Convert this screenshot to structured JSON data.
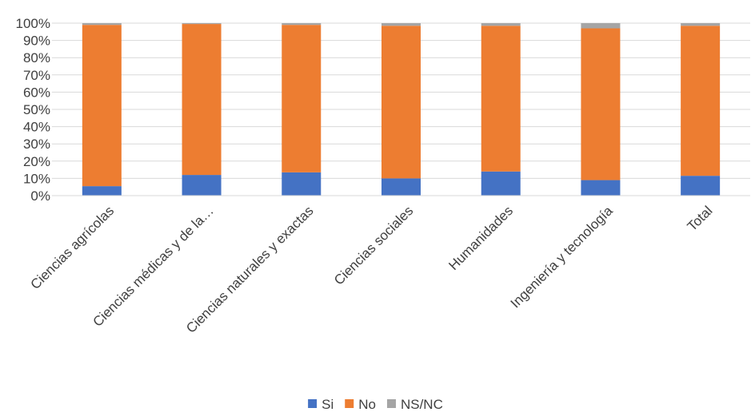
{
  "chart_data": {
    "type": "bar",
    "stacked": true,
    "percent": true,
    "categories": [
      "Ciencias agrícolas",
      "Ciencias médicas y de la…",
      "Ciencias naturales y exactas",
      "Ciencias sociales",
      "Humanidades",
      "Ingeniería y tecnología",
      "Total"
    ],
    "series": [
      {
        "name": "Si",
        "color": "#4472C4",
        "values": [
          5.5,
          12,
          13.5,
          10,
          14,
          9,
          11.5
        ]
      },
      {
        "name": "No",
        "color": "#ED7D31",
        "values": [
          93.5,
          87.5,
          85.5,
          88.5,
          84.5,
          88,
          87
        ]
      },
      {
        "name": "NS/NC",
        "color": "#A5A5A5",
        "values": [
          1,
          0.5,
          1,
          1.5,
          1.5,
          3,
          1.5
        ]
      }
    ],
    "ylim": [
      0,
      100
    ],
    "yticks": [
      "0%",
      "10%",
      "20%",
      "30%",
      "40%",
      "50%",
      "60%",
      "70%",
      "80%",
      "90%",
      "100%"
    ],
    "grid": true,
    "legend_position": "bottom"
  }
}
